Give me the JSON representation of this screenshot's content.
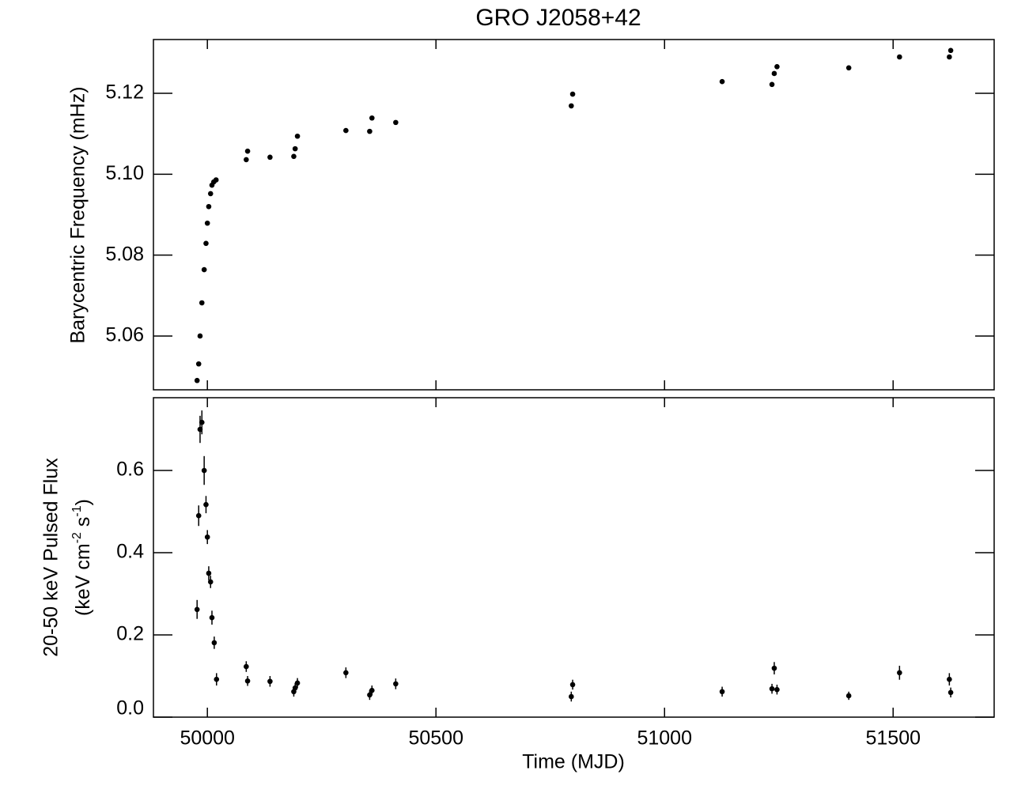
{
  "chart_data": [
    {
      "type": "scatter",
      "title": "GRO J2058+42",
      "ylabel": "Barycentric Frequency (mHz)",
      "x": [
        49977.5,
        49981,
        49984,
        49988,
        49993,
        49997,
        50000,
        50003,
        50007,
        50010,
        50014,
        50019,
        50085,
        50088,
        50137,
        50189,
        50192,
        50197,
        50303,
        50355,
        50360,
        50412,
        50796,
        50799,
        51126,
        51235,
        51240,
        51246,
        51403,
        51514,
        51623,
        51626
      ],
      "values": [
        5.049,
        5.0531,
        5.06,
        5.0682,
        5.0764,
        5.0829,
        5.0879,
        5.092,
        5.0952,
        5.0973,
        5.0981,
        5.0986,
        5.1036,
        5.1057,
        5.1042,
        5.1044,
        5.1063,
        5.1094,
        5.1108,
        5.1106,
        5.1139,
        5.1128,
        5.1169,
        5.1198,
        5.1229,
        5.1222,
        5.1249,
        5.1266,
        5.1263,
        5.129,
        5.129,
        5.1306
      ],
      "color": "#000000",
      "xlim": [
        49882,
        51721
      ],
      "ylim": [
        5.0467,
        5.1333
      ],
      "yticks": [
        5.06,
        5.08,
        {
          "value": 5.1,
          "label": "5.10"
        },
        5.12
      ]
    },
    {
      "type": "errorbar",
      "xlabel": "Time (MJD)",
      "ylabel": "20-50 keV Pulsed Flux",
      "ylabel_units": [
        "(keV cm",
        "-2",
        " s",
        "-1",
        ")"
      ],
      "x": [
        49977.5,
        49981,
        49984,
        49988,
        49993,
        49997,
        50000,
        50003,
        50007,
        50010,
        50015,
        50020,
        50085,
        50088,
        50137,
        50189,
        50192,
        50197,
        50303,
        50355,
        50360,
        50412,
        50796,
        50799,
        51126,
        51235,
        51240,
        51246,
        51403,
        51514,
        51623,
        51626
      ],
      "values": [
        0.262,
        0.49,
        0.7,
        0.717,
        0.6,
        0.517,
        0.438,
        0.35,
        0.329,
        0.242,
        0.181,
        0.092,
        0.123,
        0.088,
        0.087,
        0.062,
        0.071,
        0.083,
        0.108,
        0.054,
        0.065,
        0.081,
        0.05,
        0.079,
        0.062,
        0.069,
        0.119,
        0.067,
        0.052,
        0.108,
        0.092,
        0.06
      ],
      "errors": [
        0.023,
        0.025,
        0.033,
        0.029,
        0.035,
        0.021,
        0.017,
        0.017,
        0.015,
        0.017,
        0.015,
        0.015,
        0.013,
        0.012,
        0.013,
        0.012,
        0.012,
        0.012,
        0.013,
        0.012,
        0.012,
        0.013,
        0.012,
        0.012,
        0.012,
        0.012,
        0.015,
        0.012,
        0.01,
        0.017,
        0.015,
        0.012
      ],
      "color": "#000000",
      "xlim": [
        49882,
        51721
      ],
      "ylim": [
        0,
        0.777
      ],
      "xticks": [
        50000,
        50500,
        51000,
        51500
      ],
      "yticks": [
        {
          "value": 0,
          "label": "0.0"
        },
        0.2,
        0.4,
        0.6
      ]
    }
  ]
}
